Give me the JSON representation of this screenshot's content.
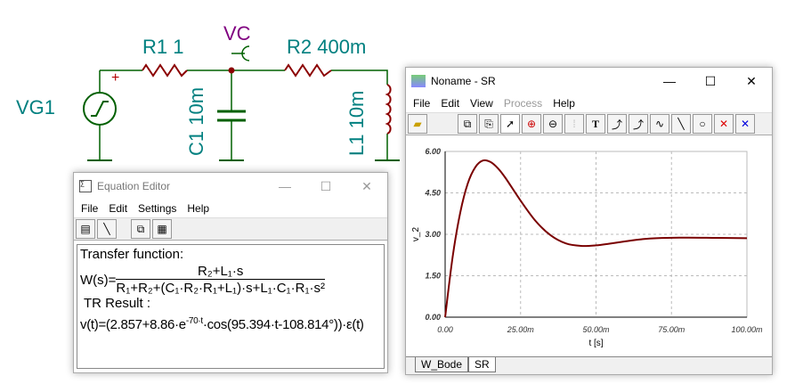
{
  "circuit": {
    "labels": {
      "vg1": "VG1",
      "r1": "R1 1",
      "vc": "VC",
      "r2": "R2 400m",
      "c1": "C1 10m",
      "l1": "L1 10m",
      "plus": "+"
    }
  },
  "equation_editor": {
    "title": "Equation Editor",
    "menu": [
      "File",
      "Edit",
      "Settings",
      "Help"
    ],
    "transfer_label": "Transfer function:",
    "w_prefix": "W(s)=",
    "numerator": "R₂+L₁·s",
    "denominator": "R₁+R₂+(C₁·R₂·R₁+L₁)·s+L₁·C₁·R₁·s²",
    "tr_label": "TR Result :",
    "result_prefix": "v(t)=(2.857+8.86·e",
    "result_exp": "-70·t",
    "result_suffix": "·cos(95.394·t-108.814°))·ε(t)"
  },
  "sr_window": {
    "title": "Noname - SR",
    "menu": [
      "File",
      "Edit",
      "View",
      "Process",
      "Help"
    ],
    "disabled_menu": [
      "Process"
    ],
    "tabs": [
      "W_Bode",
      "SR"
    ],
    "active_tab": "SR"
  },
  "chart_data": {
    "type": "line",
    "xlabel": "t [s]",
    "ylabel": "v_2",
    "xlim": [
      0,
      0.1
    ],
    "ylim": [
      0,
      6
    ],
    "grid": true,
    "x_ticks": [
      "0.00",
      "25.00m",
      "50.00m",
      "75.00m",
      "100.00m"
    ],
    "y_ticks": [
      "0.00",
      "1.50",
      "3.00",
      "4.50",
      "6.00"
    ],
    "color": "#7a0000",
    "series": [
      {
        "x": [
          0,
          0.0025,
          0.005,
          0.0075,
          0.01,
          0.0125,
          0.015,
          0.0175,
          0.02,
          0.025,
          0.03,
          0.035,
          0.04,
          0.045,
          0.05,
          0.055,
          0.06,
          0.065,
          0.07,
          0.08,
          0.09,
          0.1
        ],
        "y": [
          0,
          2.19,
          3.78,
          4.84,
          5.43,
          5.67,
          5.62,
          5.39,
          5.04,
          4.22,
          3.48,
          2.96,
          2.67,
          2.58,
          2.6,
          2.67,
          2.75,
          2.82,
          2.86,
          2.88,
          2.87,
          2.86
        ]
      }
    ]
  }
}
